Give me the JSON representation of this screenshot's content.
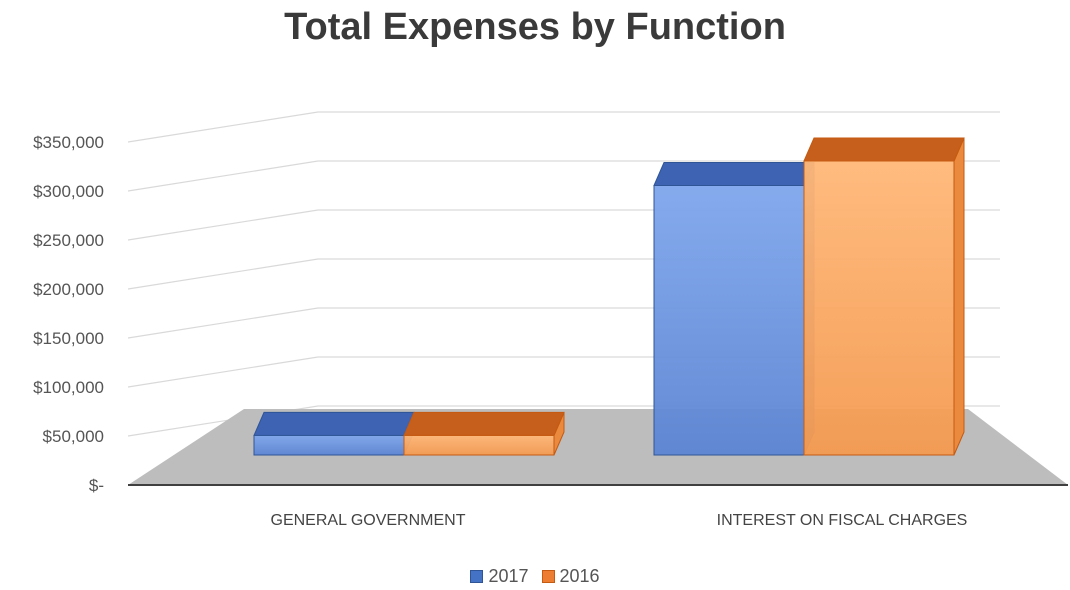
{
  "chart_data": {
    "type": "bar",
    "title": "Total Expenses by Function",
    "categories": [
      "GENERAL GOVERNMENT",
      "INTEREST ON FISCAL CHARGES"
    ],
    "series": [
      {
        "name": "2017",
        "values": [
          20000,
          275000
        ]
      },
      {
        "name": "2016",
        "values": [
          20000,
          300000
        ]
      }
    ],
    "ylim": [
      0,
      350000
    ],
    "yticks": [
      0,
      50000,
      100000,
      150000,
      200000,
      250000,
      300000,
      350000
    ],
    "ytick_labels": [
      "$-",
      "$50,000",
      "$100,000",
      "$150,000",
      "$200,000",
      "$250,000",
      "$300,000",
      "$350,000"
    ],
    "grid": true,
    "legend_position": "bottom",
    "style": "3d-clustered-column",
    "colors": {
      "series": [
        "#4472C4",
        "#ED7D31"
      ],
      "floor": "#bdbdbd",
      "gridline": "#d9d9d9",
      "axis": "#404040"
    }
  }
}
